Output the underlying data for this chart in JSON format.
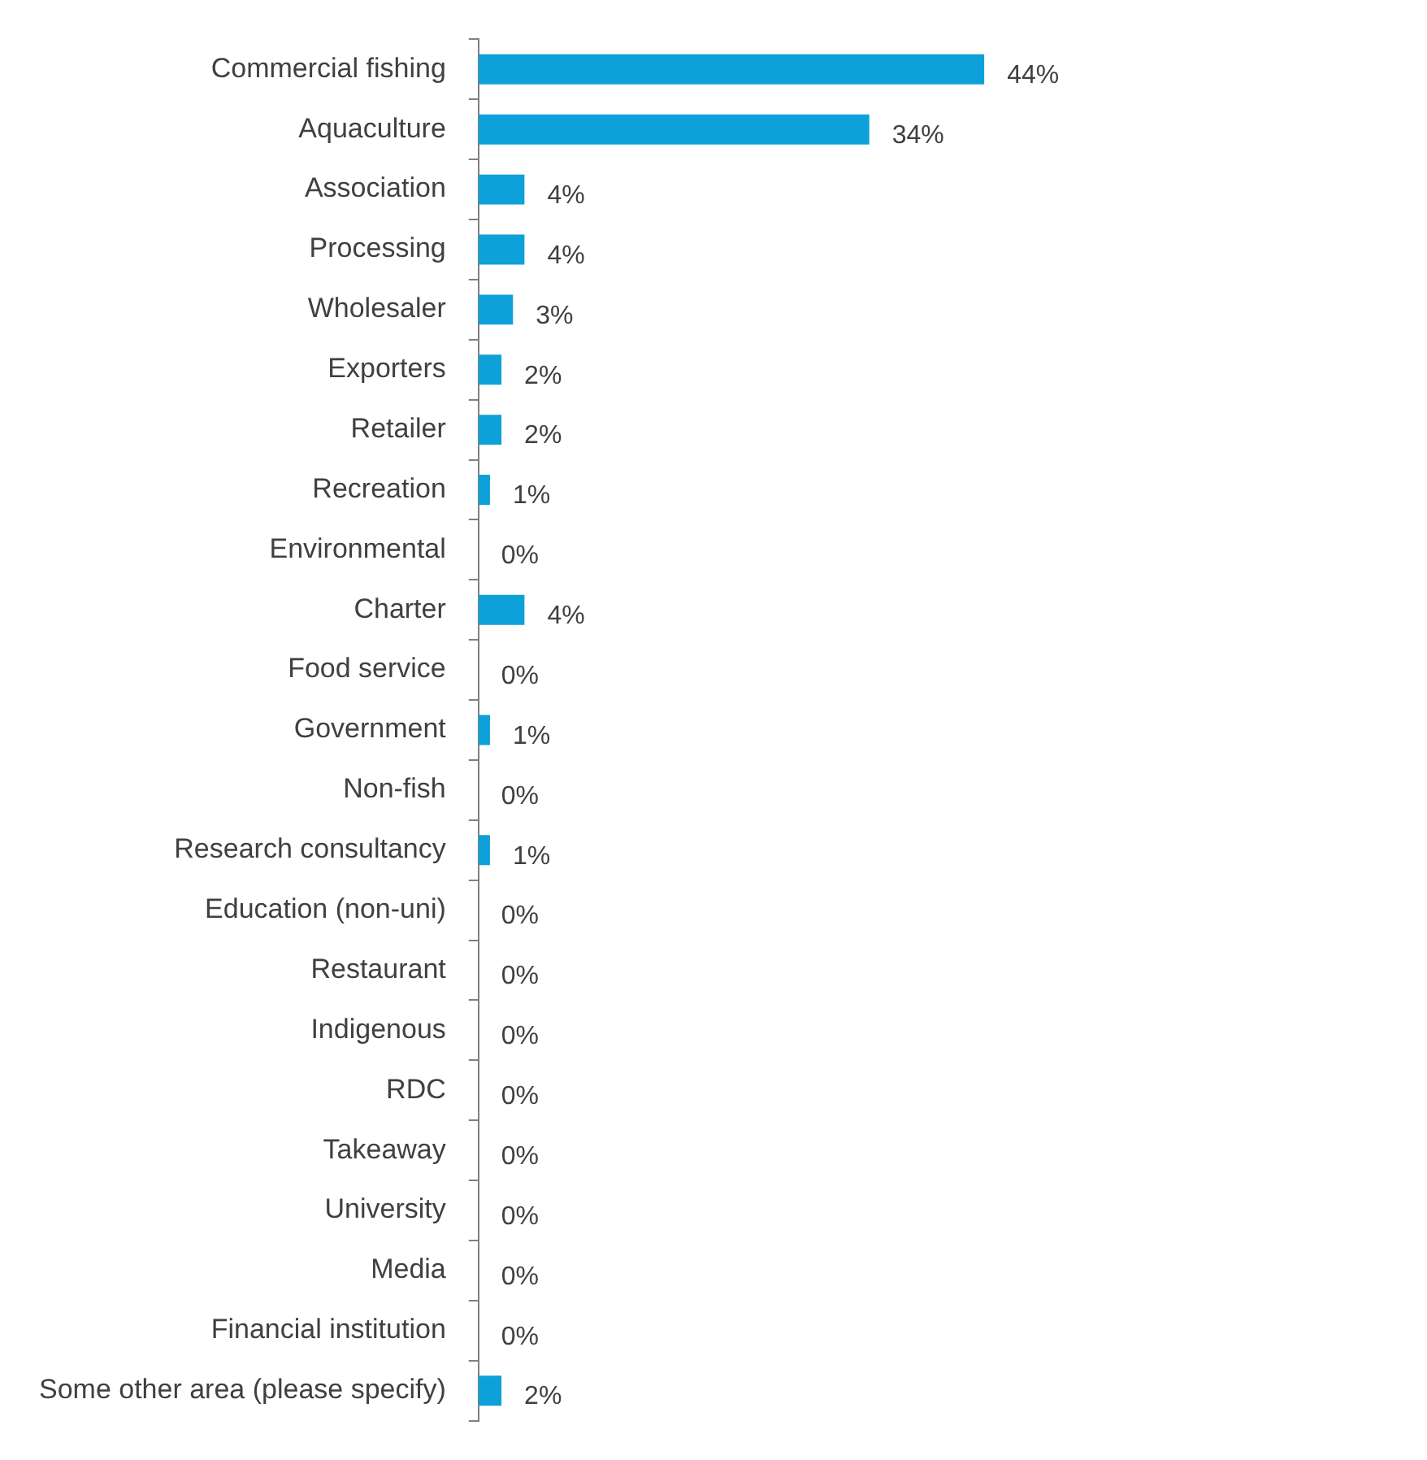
{
  "chart_data": {
    "type": "bar",
    "orientation": "horizontal",
    "categories": [
      "Commercial fishing",
      "Aquaculture",
      "Association",
      "Processing",
      "Wholesaler",
      "Exporters",
      "Retailer",
      "Recreation",
      "Environmental",
      "Charter",
      "Food service",
      "Government",
      "Non-fish",
      "Research consultancy",
      "Education (non-uni)",
      "Restaurant",
      "Indigenous",
      "RDC",
      "Takeaway",
      "University",
      "Media",
      "Financial institution",
      "Some other area (please specify)"
    ],
    "values": [
      44,
      34,
      4,
      4,
      3,
      2,
      2,
      1,
      0,
      4,
      0,
      1,
      0,
      1,
      0,
      0,
      0,
      0,
      0,
      0,
      0,
      0,
      2
    ],
    "value_labels": [
      "44%",
      "34%",
      "4%",
      "4%",
      "3%",
      "2%",
      "2%",
      "1%",
      "0%",
      "4%",
      "0%",
      "1%",
      "0%",
      "1%",
      "0%",
      "0%",
      "0%",
      "0%",
      "0%",
      "0%",
      "0%",
      "0%",
      "2%"
    ],
    "color": "#0ea0d8",
    "tick_labels": "y",
    "grid": false,
    "legend": false
  }
}
